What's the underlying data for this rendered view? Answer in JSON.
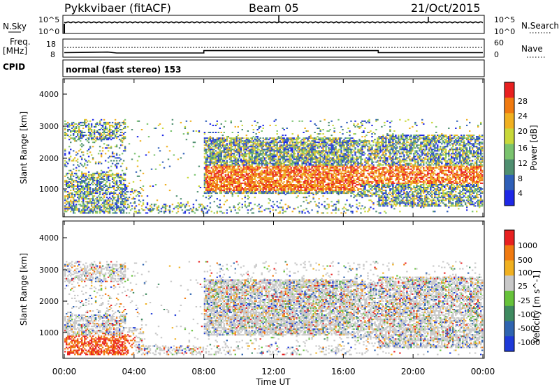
{
  "header": {
    "station": "Pykkvibaer (fitACF)",
    "beam": "Beam 05",
    "date": "21/Oct/2015"
  },
  "status_panels": {
    "nsky_label": "N.Sky",
    "freq_label_line1": "Freq.",
    "freq_label_line2": "[MHz]",
    "cpid_label": "CPID",
    "nsky_ticks_left": [
      "10^5",
      "10^0"
    ],
    "nsky_ticks_right": [
      "10^5",
      "10^0"
    ],
    "freq_ticks_left": [
      "18",
      "8"
    ],
    "nave_ticks_right": [
      "60",
      "0"
    ],
    "nsearch_label": "N.Search",
    "nave_label": "Nave",
    "cpid_text": "normal (fast stereo) 153",
    "freq_trace": [
      [
        0,
        10.5
      ],
      [
        2.5,
        10.8
      ],
      [
        3,
        10.3
      ],
      [
        8,
        10.3
      ],
      [
        8,
        11.6
      ],
      [
        18,
        11.6
      ],
      [
        18,
        10.5
      ],
      [
        24,
        10.5
      ]
    ]
  },
  "chart_data": [
    {
      "type": "heatmap",
      "name": "power",
      "ylabel": "Slant Range [km]",
      "xlabel": "",
      "yticks": [
        "4000",
        "3000",
        "2000",
        "1000"
      ],
      "colorbar_label": "Power [dB]",
      "colorbar_ticks": [
        "28",
        "24",
        "20",
        "16",
        "12",
        "8",
        "4"
      ],
      "colors": [
        "#1e28e6",
        "#2f5fb8",
        "#4f8f70",
        "#7ac36e",
        "#c8d83a",
        "#f0b020",
        "#f07a10",
        "#e82020"
      ]
    },
    {
      "type": "heatmap",
      "name": "velocity",
      "ylabel": "Slant Range [km]",
      "xlabel": "Time UT",
      "xticks": [
        "00:00",
        "04:00",
        "08:00",
        "12:00",
        "16:00",
        "20:00",
        "00:00"
      ],
      "yticks": [
        "4000",
        "3000",
        "2000",
        "1000"
      ],
      "colorbar_label": "Velocity [m s^-1]",
      "colorbar_ticks": [
        "1000",
        "500",
        "100",
        "25",
        "-25",
        "-100",
        "-500",
        "-1000"
      ],
      "colors": [
        "#1e3ad8",
        "#2f64b0",
        "#3f8a60",
        "#66c23a",
        "#c8c8c8",
        "#f0b020",
        "#f07a10",
        "#e82020"
      ]
    }
  ]
}
